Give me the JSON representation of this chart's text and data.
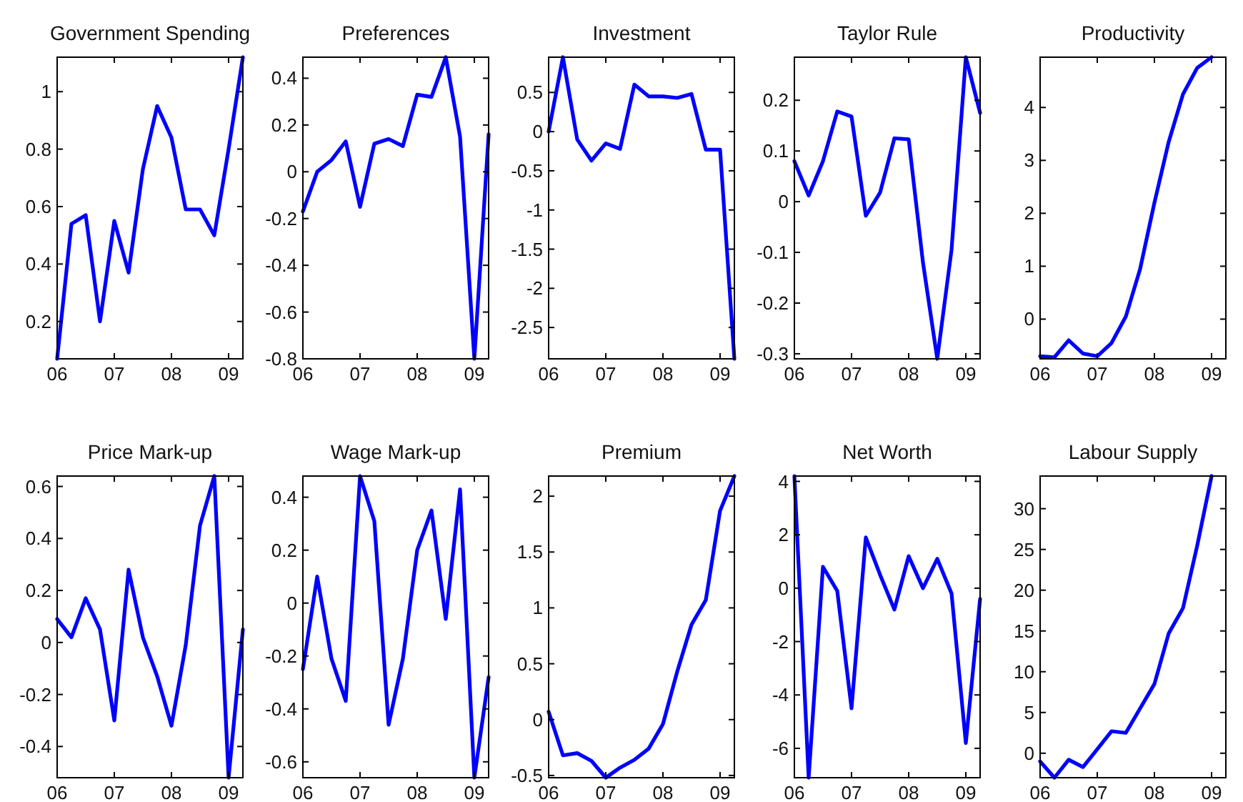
{
  "chart_data": [
    {
      "type": "line",
      "title": "Government Spending",
      "x": [
        2006,
        2006.25,
        2006.5,
        2006.75,
        2007,
        2007.25,
        2007.5,
        2007.75,
        2008,
        2008.25,
        2008.5,
        2008.75,
        2009,
        2009.25
      ],
      "values": [
        0.07,
        0.54,
        0.57,
        0.2,
        0.55,
        0.37,
        0.73,
        0.95,
        0.84,
        0.59,
        0.59,
        0.5,
        0.8,
        1.12
      ],
      "color": "#0000ff",
      "xlim": [
        2006,
        2009.25
      ],
      "xticks": [
        {
          "value": 2006,
          "label": "06"
        },
        {
          "value": 2007,
          "label": "07"
        },
        {
          "value": 2008,
          "label": "08"
        },
        {
          "value": 2009,
          "label": "09"
        }
      ],
      "ylim": [
        0.07,
        1.12
      ],
      "yticks": [
        0.2,
        0.4,
        0.6,
        0.8,
        1
      ]
    },
    {
      "type": "line",
      "title": "Preferences",
      "x": [
        2006,
        2006.25,
        2006.5,
        2006.75,
        2007,
        2007.25,
        2007.5,
        2007.75,
        2008,
        2008.25,
        2008.5,
        2008.75,
        2009,
        2009.25
      ],
      "values": [
        -0.17,
        0,
        0.05,
        0.13,
        -0.15,
        0.12,
        0.14,
        0.11,
        0.33,
        0.32,
        0.49,
        0.15,
        -0.8,
        0.16
      ],
      "color": "#0000ff",
      "xlim": [
        2006,
        2009.25
      ],
      "xticks": [
        {
          "value": 2006,
          "label": "06"
        },
        {
          "value": 2007,
          "label": "07"
        },
        {
          "value": 2008,
          "label": "08"
        },
        {
          "value": 2009,
          "label": "09"
        }
      ],
      "ylim": [
        -0.8,
        0.49
      ],
      "yticks": [
        -0.8,
        -0.6,
        -0.4,
        -0.2,
        0,
        0.2,
        0.4
      ]
    },
    {
      "type": "line",
      "title": "Investment",
      "x": [
        2006,
        2006.25,
        2006.5,
        2006.75,
        2007,
        2007.25,
        2007.5,
        2007.75,
        2008,
        2008.25,
        2008.5,
        2008.75,
        2009,
        2009.25
      ],
      "values": [
        0,
        0.95,
        -0.1,
        -0.37,
        -0.15,
        -0.22,
        0.6,
        0.45,
        0.45,
        0.43,
        0.48,
        -0.23,
        -0.23,
        -2.9
      ],
      "color": "#0000ff",
      "xlim": [
        2006,
        2009.25
      ],
      "xticks": [
        {
          "value": 2006,
          "label": "06"
        },
        {
          "value": 2007,
          "label": "07"
        },
        {
          "value": 2008,
          "label": "08"
        },
        {
          "value": 2009,
          "label": "09"
        }
      ],
      "ylim": [
        -2.9,
        0.95
      ],
      "yticks": [
        -2.5,
        -2,
        -1.5,
        -1,
        -0.5,
        0,
        0.5
      ]
    },
    {
      "type": "line",
      "title": "Taylor Rule",
      "x": [
        2006,
        2006.25,
        2006.5,
        2006.75,
        2007,
        2007.25,
        2007.5,
        2007.75,
        2008,
        2008.25,
        2008.5,
        2008.75,
        2009,
        2009.25
      ],
      "values": [
        0.08,
        0.012,
        0.08,
        0.178,
        0.168,
        -0.028,
        0.018,
        0.125,
        0.123,
        -0.12,
        -0.31,
        -0.095,
        0.285,
        0.175
      ],
      "color": "#0000ff",
      "xlim": [
        2006,
        2009.25
      ],
      "xticks": [
        {
          "value": 2006,
          "label": "06"
        },
        {
          "value": 2007,
          "label": "07"
        },
        {
          "value": 2008,
          "label": "08"
        },
        {
          "value": 2009,
          "label": "09"
        }
      ],
      "ylim": [
        -0.31,
        0.285
      ],
      "yticks": [
        -0.3,
        -0.2,
        -0.1,
        0,
        0.1,
        0.2
      ]
    },
    {
      "type": "line",
      "title": "Productivity",
      "x": [
        2006,
        2006.25,
        2006.5,
        2006.75,
        2007,
        2007.25,
        2007.5,
        2007.75,
        2008,
        2008.25,
        2008.5,
        2008.75,
        2009
      ],
      "values": [
        -0.7,
        -0.72,
        -0.4,
        -0.65,
        -0.7,
        -0.45,
        0.05,
        0.95,
        2.2,
        3.35,
        4.25,
        4.75,
        4.95
      ],
      "color": "#0000ff",
      "xlim": [
        2006,
        2009.25
      ],
      "xticks": [
        {
          "value": 2006,
          "label": "06"
        },
        {
          "value": 2007,
          "label": "07"
        },
        {
          "value": 2008,
          "label": "08"
        },
        {
          "value": 2009,
          "label": "09"
        }
      ],
      "ylim": [
        -0.75,
        4.95
      ],
      "yticks": [
        0,
        1,
        2,
        3,
        4
      ]
    },
    {
      "type": "line",
      "title": "Price Mark-up",
      "x": [
        2006,
        2006.25,
        2006.5,
        2006.75,
        2007,
        2007.25,
        2007.5,
        2007.75,
        2008,
        2008.25,
        2008.5,
        2008.75,
        2009,
        2009.25
      ],
      "values": [
        0.09,
        0.02,
        0.17,
        0.05,
        -0.3,
        0.28,
        0.02,
        -0.13,
        -0.32,
        -0.01,
        0.45,
        0.64,
        -0.52,
        0.05
      ],
      "color": "#0000ff",
      "xlim": [
        2006,
        2009.25
      ],
      "xticks": [
        {
          "value": 2006,
          "label": "06"
        },
        {
          "value": 2007,
          "label": "07"
        },
        {
          "value": 2008,
          "label": "08"
        },
        {
          "value": 2009,
          "label": "09"
        }
      ],
      "ylim": [
        -0.52,
        0.64
      ],
      "yticks": [
        -0.4,
        -0.2,
        0,
        0.2,
        0.4,
        0.6
      ]
    },
    {
      "type": "line",
      "title": "Wage Mark-up",
      "x": [
        2006,
        2006.25,
        2006.5,
        2006.75,
        2007,
        2007.25,
        2007.5,
        2007.75,
        2008,
        2008.25,
        2008.5,
        2008.75,
        2009,
        2009.25
      ],
      "values": [
        -0.25,
        0.1,
        -0.21,
        -0.37,
        0.48,
        0.31,
        -0.46,
        -0.21,
        0.2,
        0.35,
        -0.06,
        0.43,
        -0.66,
        -0.28
      ],
      "color": "#0000ff",
      "xlim": [
        2006,
        2009.25
      ],
      "xticks": [
        {
          "value": 2006,
          "label": "06"
        },
        {
          "value": 2007,
          "label": "07"
        },
        {
          "value": 2008,
          "label": "08"
        },
        {
          "value": 2009,
          "label": "09"
        }
      ],
      "ylim": [
        -0.66,
        0.48
      ],
      "yticks": [
        -0.6,
        -0.4,
        -0.2,
        0,
        0.2,
        0.4
      ]
    },
    {
      "type": "line",
      "title": "Premium",
      "x": [
        2006,
        2006.25,
        2006.5,
        2006.75,
        2007,
        2007.25,
        2007.5,
        2007.75,
        2008,
        2008.25,
        2008.5,
        2008.75,
        2009,
        2009.25
      ],
      "values": [
        0.07,
        -0.32,
        -0.3,
        -0.37,
        -0.52,
        -0.43,
        -0.36,
        -0.26,
        -0.04,
        0.43,
        0.85,
        1.07,
        1.87,
        2.18
      ],
      "color": "#0000ff",
      "xlim": [
        2006,
        2009.25
      ],
      "xticks": [
        {
          "value": 2006,
          "label": "06"
        },
        {
          "value": 2007,
          "label": "07"
        },
        {
          "value": 2008,
          "label": "08"
        },
        {
          "value": 2009,
          "label": "09"
        }
      ],
      "ylim": [
        -0.52,
        2.18
      ],
      "yticks": [
        -0.5,
        0,
        0.5,
        1,
        1.5,
        2
      ]
    },
    {
      "type": "line",
      "title": "Net Worth",
      "x": [
        2006,
        2006.25,
        2006.5,
        2006.75,
        2007,
        2007.25,
        2007.5,
        2007.75,
        2008,
        2008.25,
        2008.5,
        2008.75,
        2009,
        2009.25
      ],
      "values": [
        4.2,
        -7.1,
        0.8,
        -0.1,
        -4.5,
        1.9,
        0.5,
        -0.8,
        1.2,
        0,
        1.1,
        -0.2,
        -5.8,
        -0.4
      ],
      "color": "#0000ff",
      "xlim": [
        2006,
        2009.25
      ],
      "xticks": [
        {
          "value": 2006,
          "label": "06"
        },
        {
          "value": 2007,
          "label": "07"
        },
        {
          "value": 2008,
          "label": "08"
        },
        {
          "value": 2009,
          "label": "09"
        }
      ],
      "ylim": [
        -7.1,
        4.2
      ],
      "yticks": [
        -6,
        -4,
        -2,
        0,
        2,
        4
      ]
    },
    {
      "type": "line",
      "title": "Labour Supply",
      "x": [
        2006,
        2006.25,
        2006.5,
        2006.75,
        2007,
        2007.25,
        2007.5,
        2007.75,
        2008,
        2008.25,
        2008.5,
        2008.75,
        2009
      ],
      "values": [
        -1,
        -3,
        -0.8,
        -1.7,
        0.5,
        2.7,
        2.5,
        5.5,
        8.5,
        14.7,
        17.8,
        25.5,
        34
      ],
      "color": "#0000ff",
      "xlim": [
        2006,
        2009.25
      ],
      "xticks": [
        {
          "value": 2006,
          "label": "06"
        },
        {
          "value": 2007,
          "label": "07"
        },
        {
          "value": 2008,
          "label": "08"
        },
        {
          "value": 2009,
          "label": "09"
        }
      ],
      "ylim": [
        -3,
        34
      ],
      "yticks": [
        0,
        5,
        10,
        15,
        20,
        25,
        30
      ]
    }
  ]
}
